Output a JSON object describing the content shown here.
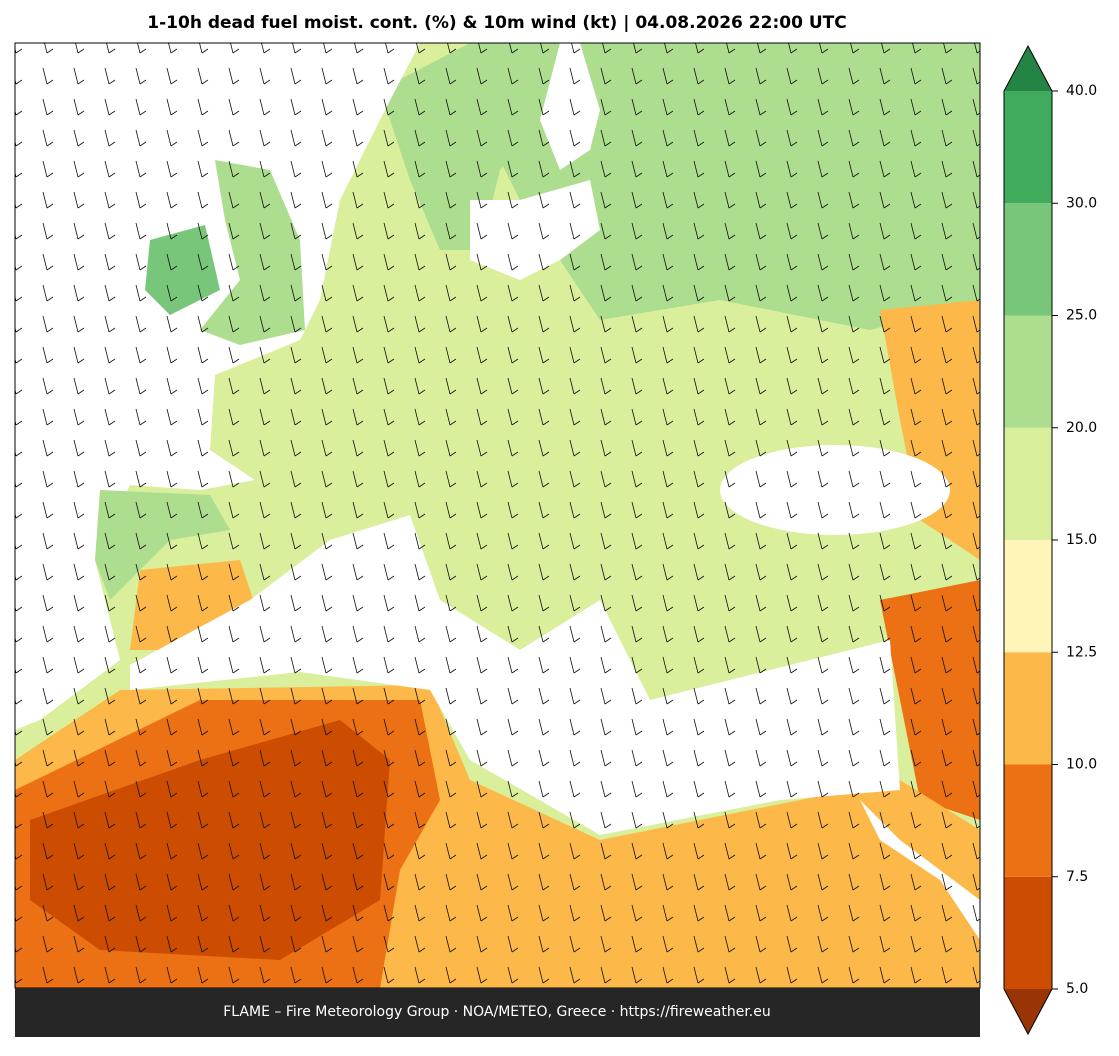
{
  "title": "1-10h dead fuel moist. cont. (%) & 10m wind (kt)  |  04.08.2026 22:00 UTC",
  "footer": "FLAME – Fire Meteorology Group · NOA/METEO, Greece · https://fireweather.eu",
  "colorbar": {
    "ticks": [
      {
        "value": 5,
        "label": "5.0"
      },
      {
        "value": 7.5,
        "label": "7.5"
      },
      {
        "value": 10,
        "label": "10.0"
      },
      {
        "value": 12.5,
        "label": "12.5"
      },
      {
        "value": 15,
        "label": "15.0"
      },
      {
        "value": 20,
        "label": "20.0"
      },
      {
        "value": 25,
        "label": "25.0"
      },
      {
        "value": 30,
        "label": "30.0"
      },
      {
        "value": 40,
        "label": "40.0"
      }
    ],
    "colors": [
      "#cc4c02",
      "#ec7014",
      "#fdb84a",
      "#fff5b8",
      "#d9ef9b",
      "#addd8e",
      "#78c679",
      "#41ab5d"
    ],
    "under_color": "#993404",
    "over_color": "#238443"
  }
}
